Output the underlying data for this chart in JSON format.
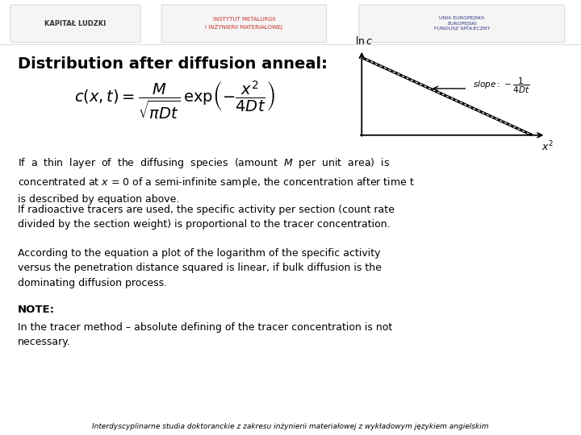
{
  "title": "Distribution after diffusion anneal:",
  "background_color": "#ffffff",
  "graph": {
    "line_color": "#000000",
    "line_width": 2.5
  },
  "footer": "Interdyscyplinarne studia doktoranckie z zakresu inżynierii materiałowej z wykładowym językiem angielskim",
  "para1": "If  a  thin  layer  of  the  diffusing  species  (amount  $M$  per  unit  area)  is\nconcentrated at $x$ = 0 of a semi-infinite sample, the concentration after time t\nis described by equation above.",
  "para2": "If radioactive tracers are used, the specific activity per section (count rate\ndivided by the section weight) is proportional to the tracer concentration.",
  "para3": "According to the equation a plot of the logarithm of the specific activity\nversus the penetration distance squared is linear, if bulk diffusion is the\ndominating diffusion process.",
  "note_label": "NOTE:",
  "para4": "In the tracer method – absolute defining of the tracer concentration is not\nnecessary.",
  "logo_left": "KAPITAŁ LUDZKI",
  "logo_mid": "INSTYTUT METALURGII\nI INŻYNIERII MATERIAŁOWEJ",
  "logo_right": "UNIA EUROPEJSKA\nEUROPEJSKI\nFUNDUSZ SPOŁECZNY"
}
